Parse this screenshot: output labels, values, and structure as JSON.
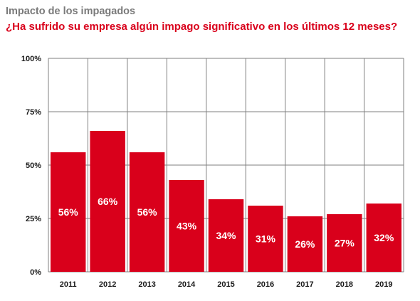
{
  "colors": {
    "bar": "#d9001b",
    "subtitle": "#d9001b",
    "title": "#7a7a7a",
    "grid": "#7f7f7f"
  },
  "chart_data": {
    "type": "bar",
    "title": "Impacto de los impagados",
    "subtitle": "¿Ha sufrido su empresa algún impago significativo en los últimos 12 meses?",
    "xlabel": "",
    "ylabel": "",
    "ylim": [
      0,
      100
    ],
    "yticks": [
      0,
      25,
      50,
      75,
      100
    ],
    "ytick_labels": [
      "0%",
      "25%",
      "50%",
      "75%",
      "100%"
    ],
    "grid": true,
    "categories": [
      "2011",
      "2012",
      "2013",
      "2014",
      "2015",
      "2016",
      "2017",
      "2018",
      "2019"
    ],
    "values": [
      56,
      66,
      56,
      43,
      34,
      31,
      26,
      27,
      32
    ],
    "data_labels": [
      "56%",
      "66%",
      "56%",
      "43%",
      "34%",
      "31%",
      "26%",
      "27%",
      "32%"
    ]
  }
}
